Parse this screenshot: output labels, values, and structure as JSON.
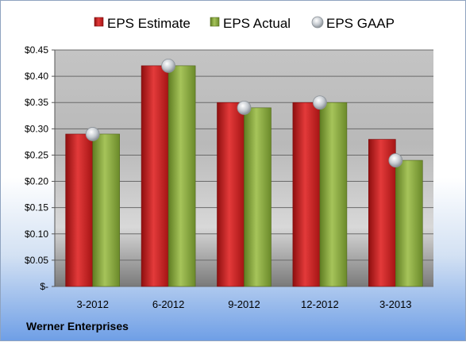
{
  "chart_data": {
    "type": "bar",
    "categories": [
      "3-2012",
      "6-2012",
      "9-2012",
      "12-2012",
      "3-2013"
    ],
    "series": [
      {
        "name": "EPS Estimate",
        "type": "bar",
        "color": "#c81e1e",
        "values": [
          0.29,
          0.42,
          0.35,
          0.35,
          0.28
        ]
      },
      {
        "name": "EPS Actual",
        "type": "bar",
        "color": "#8aaa3c",
        "values": [
          0.29,
          0.42,
          0.34,
          0.35,
          0.24
        ]
      },
      {
        "name": "EPS GAAP",
        "type": "scatter",
        "color": "#c0c6cc",
        "values": [
          0.29,
          0.42,
          0.34,
          0.35,
          0.24
        ]
      }
    ],
    "yticks": [
      "$-",
      "$0.05",
      "$0.10",
      "$0.15",
      "$0.20",
      "$0.25",
      "$0.30",
      "$0.35",
      "$0.40",
      "$0.45"
    ],
    "ylim": [
      0,
      0.45
    ],
    "grid": true,
    "legend_position": "top"
  },
  "footer": {
    "label": "Werner Enterprises"
  }
}
